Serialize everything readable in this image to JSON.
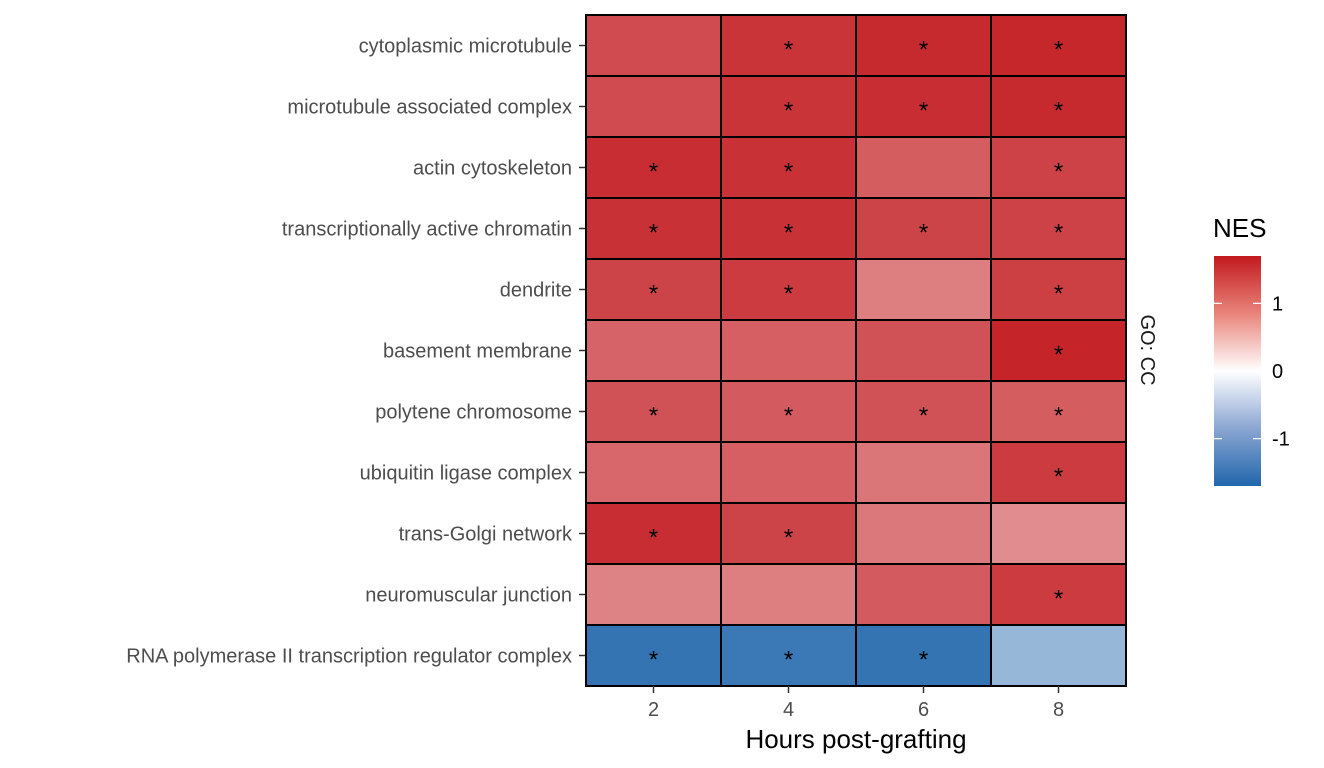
{
  "chart_data": {
    "type": "heatmap",
    "xlabel": "Hours post-grafting",
    "x": [
      "2",
      "4",
      "6",
      "8"
    ],
    "y": [
      "cytoplasmic microtubule",
      "microtubule associated complex",
      "actin cytoskeleton",
      "transcriptionally active chromatin",
      "dendrite",
      "basement membrane",
      "polytene chromosome",
      "ubiquitin ligase complex",
      "trans-Golgi network",
      "neuromuscular junction",
      "RNA polymerase II transcription regulator complex"
    ],
    "values": [
      [
        1.33,
        1.5,
        1.58,
        1.6
      ],
      [
        1.33,
        1.5,
        1.55,
        1.58
      ],
      [
        1.55,
        1.52,
        1.2,
        1.4
      ],
      [
        1.52,
        1.52,
        1.38,
        1.4
      ],
      [
        1.38,
        1.45,
        0.95,
        1.42
      ],
      [
        1.15,
        1.18,
        1.28,
        1.62
      ],
      [
        1.28,
        1.22,
        1.28,
        1.2
      ],
      [
        1.12,
        1.18,
        1.02,
        1.45
      ],
      [
        1.55,
        1.38,
        1.0,
        0.85
      ],
      [
        0.92,
        0.95,
        1.22,
        1.45
      ],
      [
        -1.55,
        -1.5,
        -1.55,
        -0.8
      ]
    ],
    "significant": [
      [
        false,
        true,
        true,
        true
      ],
      [
        false,
        true,
        true,
        true
      ],
      [
        true,
        true,
        false,
        true
      ],
      [
        true,
        true,
        true,
        true
      ],
      [
        true,
        true,
        false,
        true
      ],
      [
        false,
        false,
        false,
        true
      ],
      [
        true,
        true,
        true,
        true
      ],
      [
        false,
        false,
        false,
        true
      ],
      [
        true,
        true,
        false,
        false
      ],
      [
        false,
        false,
        false,
        true
      ],
      [
        true,
        true,
        true,
        false
      ]
    ],
    "significance_mark": "*",
    "facet_label": "GO: CC",
    "legend": {
      "title": "NES",
      "ticks": [
        "1",
        "0",
        "-1"
      ],
      "tick_values": [
        1,
        0,
        -1
      ],
      "range": [
        -1.7,
        1.7
      ]
    },
    "colors": {
      "low": "#2166ac",
      "mid": "#ffffff",
      "high": "#c2191e"
    }
  }
}
